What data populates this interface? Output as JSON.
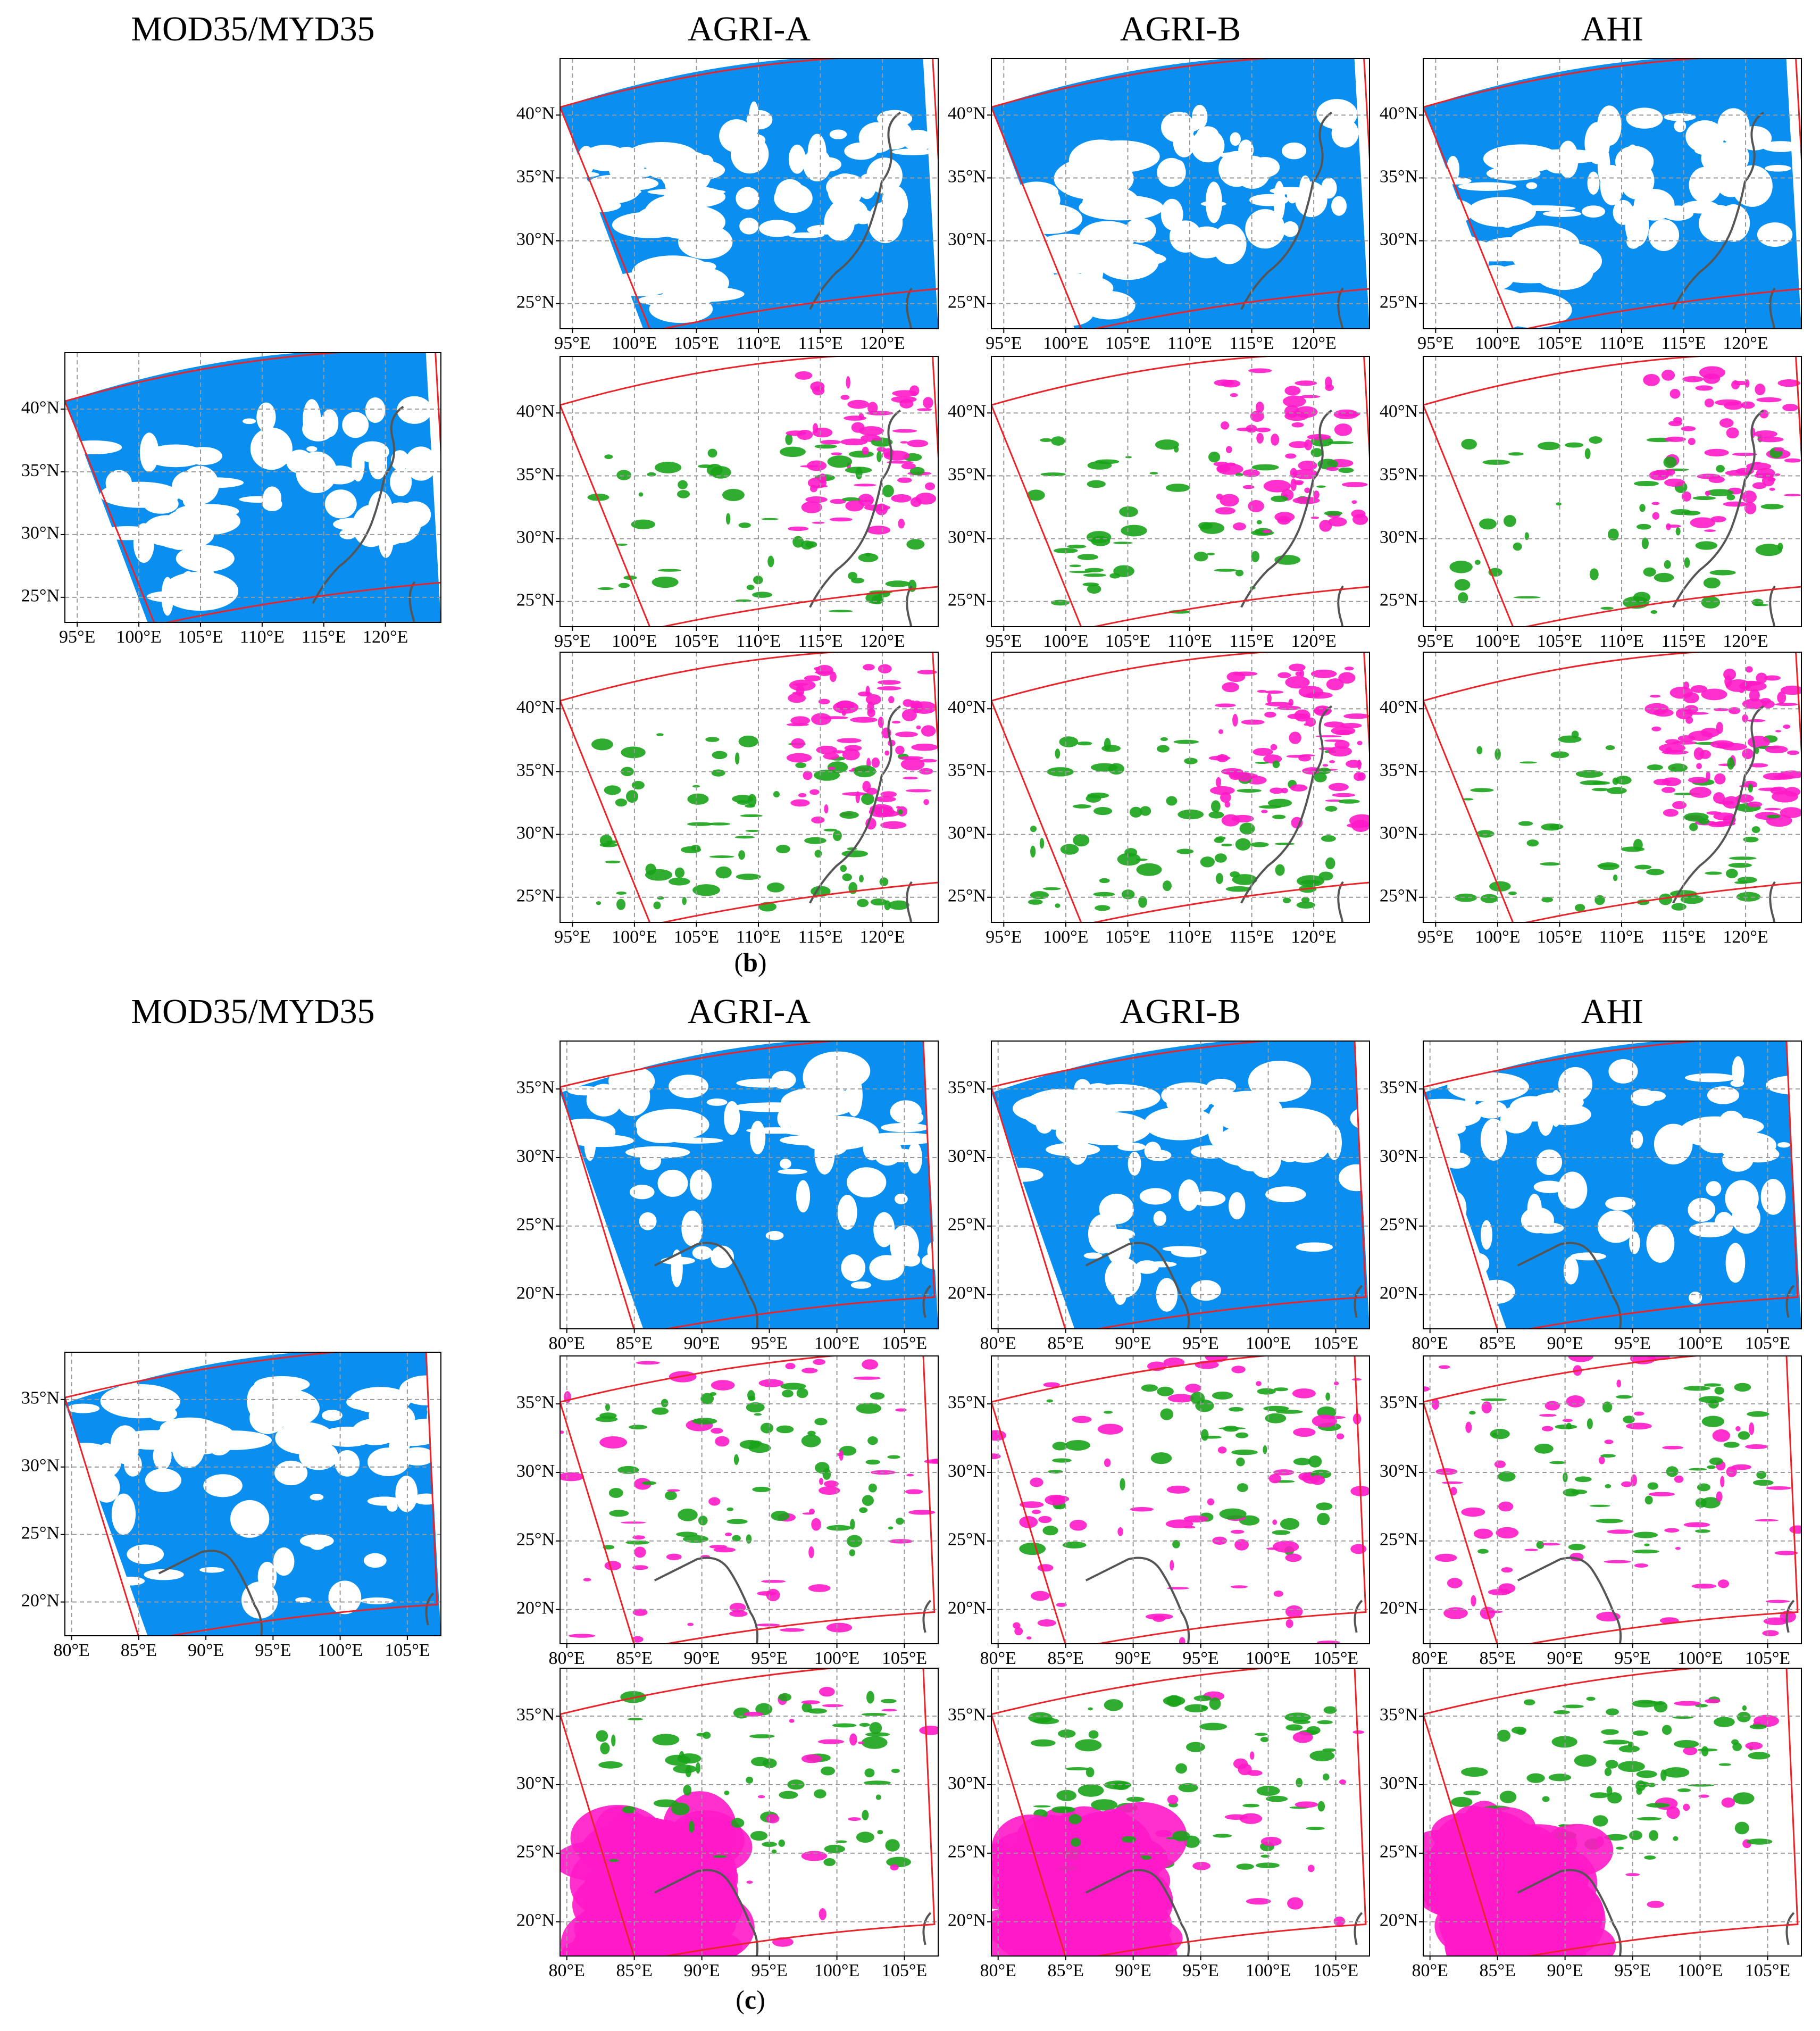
{
  "sections": [
    {
      "titles": [
        "MOD35/MYD35",
        "AGRI-A",
        "AGRI-B",
        "AHI"
      ],
      "caption": [
        "(",
        "b",
        ")"
      ],
      "lat_range": [
        23,
        44.5
      ],
      "lon_range": [
        94,
        124.5
      ],
      "lat_ticks": [
        {
          "value": 25,
          "label": "25°N"
        },
        {
          "value": 30,
          "label": "30°N"
        },
        {
          "value": 35,
          "label": "35°N"
        },
        {
          "value": 40,
          "label": "40°N"
        }
      ],
      "lon_ticks": [
        {
          "value": 95,
          "label": "95°E"
        },
        {
          "value": 100,
          "label": "100°E"
        },
        {
          "value": 105,
          "label": "105°E"
        },
        {
          "value": 110,
          "label": "110°E"
        },
        {
          "value": 115,
          "label": "115°E"
        },
        {
          "value": 120,
          "label": "120°E"
        }
      ]
    },
    {
      "titles": [
        "MOD35/MYD35",
        "AGRI-A",
        "AGRI-B",
        "AHI"
      ],
      "caption": [
        "(",
        "c",
        ")"
      ],
      "lat_range": [
        17.5,
        38.5
      ],
      "lon_range": [
        79.5,
        107.5
      ],
      "lat_ticks": [
        {
          "value": 20,
          "label": "20°N"
        },
        {
          "value": 25,
          "label": "25°N"
        },
        {
          "value": 30,
          "label": "30°N"
        },
        {
          "value": 35,
          "label": "35°N"
        }
      ],
      "lon_ticks": [
        {
          "value": 80,
          "label": "80°E"
        },
        {
          "value": 85,
          "label": "85°E"
        },
        {
          "value": 90,
          "label": "90°E"
        },
        {
          "value": 95,
          "label": "95°E"
        },
        {
          "value": 100,
          "label": "100°E"
        },
        {
          "value": 105,
          "label": "105°E"
        }
      ]
    }
  ]
}
